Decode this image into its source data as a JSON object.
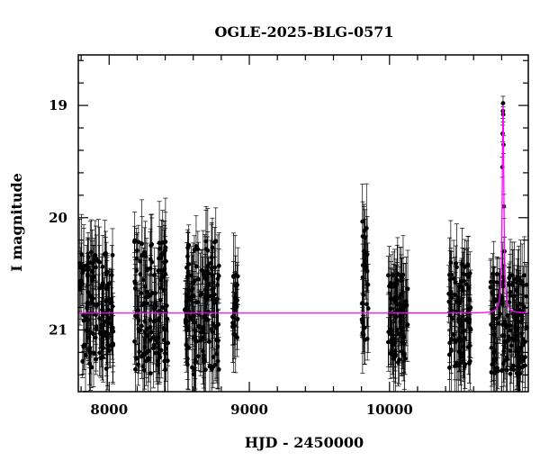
{
  "chart_data": {
    "type": "scatter",
    "title": "OGLE-2025-BLG-0571",
    "xlabel": "HJD - 2450000",
    "ylabel": "I magnitude",
    "xlim": [
      7780,
      10990
    ],
    "ylim": [
      21.55,
      18.55
    ],
    "y_inverted": true,
    "x_ticks": [
      8000,
      9000,
      10000
    ],
    "y_ticks": [
      19,
      20,
      21
    ],
    "grid": false,
    "colors": {
      "data": "#000000",
      "errorbar": "#000000",
      "model": "#ff00ff"
    },
    "seasons": [
      {
        "x_range": [
          7790,
          8030
        ],
        "mag_range": [
          20.3,
          21.35
        ]
      },
      {
        "x_range": [
          8180,
          8420
        ],
        "mag_range": [
          20.2,
          21.4
        ]
      },
      {
        "x_range": [
          8540,
          8790
        ],
        "mag_range": [
          20.2,
          21.4
        ]
      },
      {
        "x_range": [
          8880,
          8920
        ],
        "mag_range": [
          20.5,
          21.1
        ]
      },
      {
        "x_range": [
          9800,
          9850
        ],
        "mag_range": [
          20.0,
          21.1
        ]
      },
      {
        "x_range": [
          9990,
          10130
        ],
        "mag_range": [
          20.5,
          21.3
        ]
      },
      {
        "x_range": [
          10420,
          10580
        ],
        "mag_range": [
          20.4,
          21.35
        ]
      },
      {
        "x_range": [
          10720,
          10980
        ],
        "mag_range": [
          20.5,
          21.4
        ]
      }
    ],
    "model": {
      "baseline_mag": 20.85,
      "peak_hjd": 10810,
      "peak_mag": 19.0,
      "width_days": 7
    },
    "peak_points": [
      {
        "x": 10805,
        "y": 19.55
      },
      {
        "x": 10807,
        "y": 19.25
      },
      {
        "x": 10809,
        "y": 19.05
      },
      {
        "x": 10810,
        "y": 18.98
      },
      {
        "x": 10811,
        "y": 19.08
      },
      {
        "x": 10813,
        "y": 19.35
      },
      {
        "x": 10816,
        "y": 19.9
      },
      {
        "x": 10820,
        "y": 20.3
      }
    ]
  }
}
